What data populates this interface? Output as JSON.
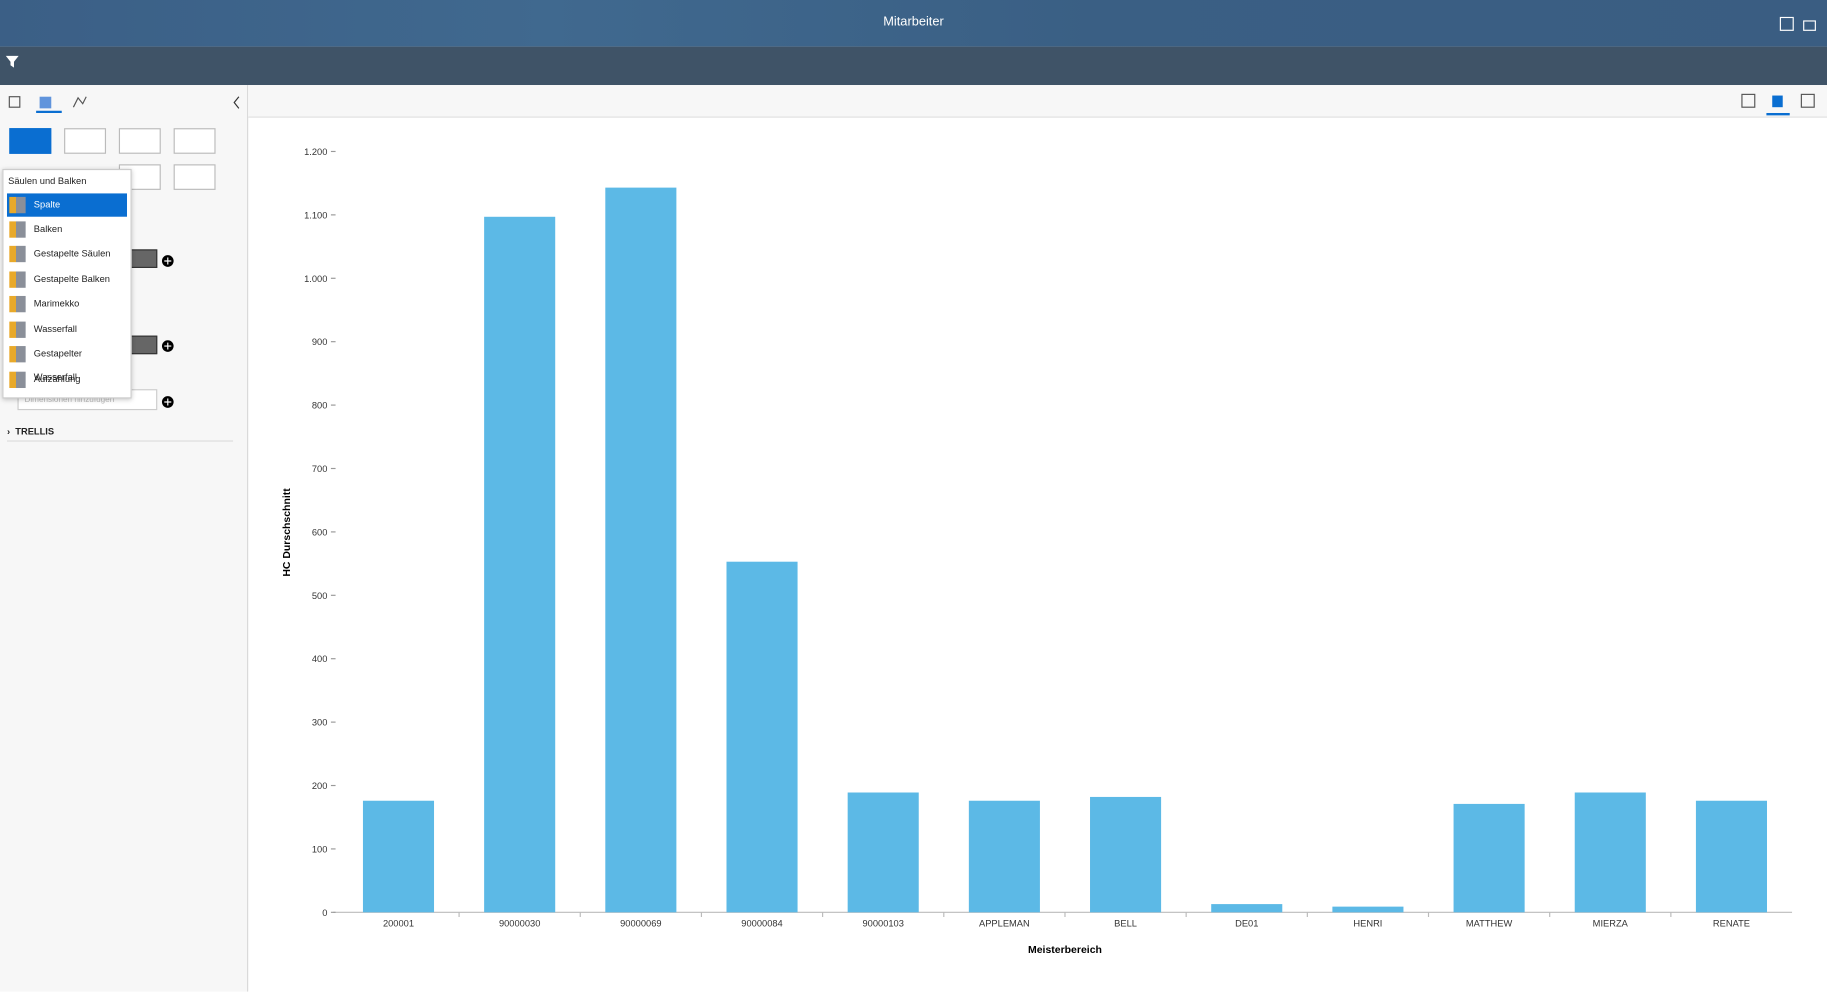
{
  "header": {
    "title": "Mitarbeiter"
  },
  "sidebar": {
    "menu": {
      "heading": "Säulen und Balken",
      "items": [
        "Spalte",
        "Balken",
        "Gestapelte Säulen",
        "Gestapelte Balken",
        "Marimekko",
        "Wasserfall",
        "Gestapelter Wasserfall",
        "Aufzählung"
      ]
    },
    "dimension_placeholder": "Dimensionen hinzufügen",
    "trellis": "TRELLIS"
  },
  "chart_data": {
    "type": "bar",
    "x_label": "Meisterbereich",
    "y_label": "HC Durschschnitt",
    "categories": [
      "200001",
      "90000030",
      "90000069",
      "90000084",
      "90000103",
      "APPLEMAN",
      "BELL",
      "DE01",
      "HENRI",
      "MATTHEW",
      "MIERZA",
      "RENATE"
    ],
    "values": [
      176,
      1097,
      1143,
      553,
      189,
      176,
      182,
      13,
      9,
      171,
      189,
      176
    ],
    "color": "#5cb9e6",
    "ylim": [
      0,
      1200
    ],
    "yticks": [
      0,
      100,
      200,
      300,
      400,
      500,
      600,
      700,
      800,
      900,
      {
        "value": 1000,
        "label": "1.000"
      },
      {
        "value": 1100,
        "label": "1.100"
      },
      {
        "value": 1200,
        "label": "1.200"
      }
    ],
    "grid": false
  }
}
